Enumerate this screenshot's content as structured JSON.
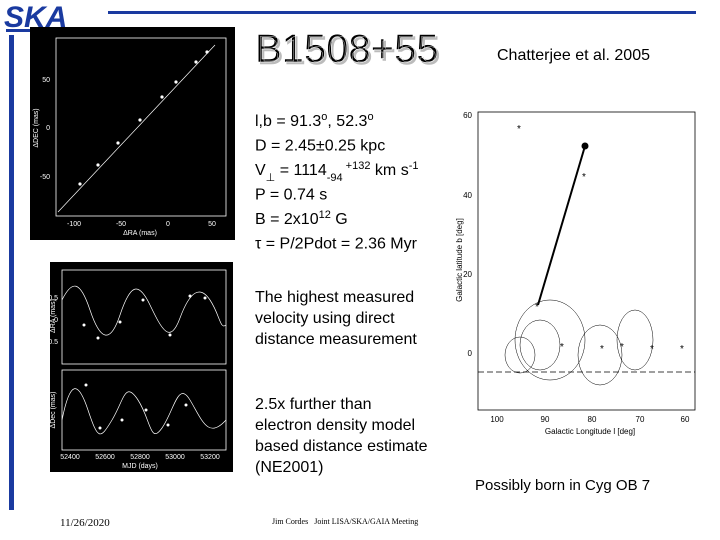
{
  "header": {
    "logo": "SKA",
    "title": "B1508+55",
    "citation": "Chatterjee et al. 2005"
  },
  "parameters": [
    [
      {
        "t": "l,b = 91.3"
      },
      {
        "t": "o",
        "pos": "sup"
      },
      {
        "t": ", 52.3"
      },
      {
        "t": "o",
        "pos": "sup"
      }
    ],
    [
      {
        "t": "D = 2.45±0.25 kpc"
      }
    ],
    [
      {
        "t": "V"
      },
      {
        "t": "⊥",
        "pos": "sub"
      },
      {
        "t": " = 1114"
      },
      {
        "t": "-94",
        "pos": "sub"
      },
      {
        "t": " +132",
        "pos": "sup"
      },
      {
        "t": " km s"
      },
      {
        "t": "-1",
        "pos": "sup"
      }
    ],
    [
      {
        "t": "P = 0.74 s"
      }
    ],
    [
      {
        "t": "B = 2x10"
      },
      {
        "t": "12",
        "pos": "sup"
      },
      {
        "t": " G"
      }
    ],
    [
      {
        "t": "τ = P/2Pdot = 2.36 Myr"
      }
    ]
  ],
  "notes": [
    [
      "The highest measured",
      "velocity using direct",
      "distance measurement"
    ],
    [
      "2.5x further than",
      "electron density model",
      "based distance estimate",
      "(NE2001)"
    ]
  ],
  "caption": "Possibly born in Cyg OB 7",
  "footer": {
    "date": "11/26/2020",
    "credit": "Jim Cordes   Joint LISA/SKA/GAIA Meeting"
  },
  "plots": {
    "astrometry": {
      "xlabel": "ΔRA (mas)",
      "ylabel": "ΔDEC (mas)",
      "xticks": [
        "-100",
        "-50",
        "0",
        "50"
      ],
      "yticks": [
        "50",
        "0",
        "-50"
      ]
    },
    "timing": {
      "xlabel": "MJD (days)",
      "ylabel_top": "ΔRA (mas)",
      "ylabel_bottom": "ΔDec (mas)",
      "xticks": [
        "52400",
        "52600",
        "52800",
        "53000",
        "53200"
      ],
      "yticks": [
        "0.5",
        "0",
        "-0.5"
      ]
    },
    "galactic": {
      "xlabel": "Galactic Longitude l [deg]",
      "ylabel": "Galactic latitude b [deg]",
      "xticks": [
        "100",
        "90",
        "80",
        "70",
        "60"
      ],
      "yticks": [
        "60",
        "40",
        "20",
        "0"
      ]
    }
  }
}
